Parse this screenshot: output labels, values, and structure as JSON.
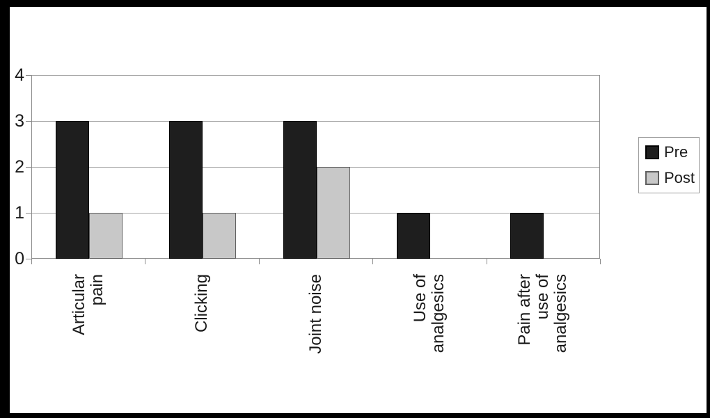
{
  "chart_data": {
    "type": "bar",
    "title": "",
    "xlabel": "",
    "ylabel": "",
    "categories": [
      "Articular pain",
      "Clicking",
      "Joint noise",
      "Use of analgesics",
      "Pain after use of analgesics"
    ],
    "category_label_lines": [
      [
        "Articular",
        "pain"
      ],
      [
        "Clicking"
      ],
      [
        "Joint noise"
      ],
      [
        "Use of",
        "analgesics"
      ],
      [
        "Pain after",
        "use of",
        "analgesics"
      ]
    ],
    "series": [
      {
        "name": "Pre",
        "values": [
          3,
          3,
          3,
          1,
          1
        ],
        "color": "#1e1e1e",
        "border_color": "#000000"
      },
      {
        "name": "Post",
        "values": [
          1,
          1,
          2,
          0,
          0
        ],
        "color": "#c8c8c8",
        "border_color": "#5f5f5f"
      }
    ],
    "ylim": [
      0,
      4
    ],
    "yticks": [
      0,
      1,
      2,
      3,
      4
    ],
    "grid": true,
    "legend_position": "right",
    "colors": {
      "gridline": "#a8a8a8",
      "axis": "#8c8c8c",
      "text": "#1a1a1a",
      "frame_border": "#000000",
      "background": "#ffffff"
    }
  }
}
